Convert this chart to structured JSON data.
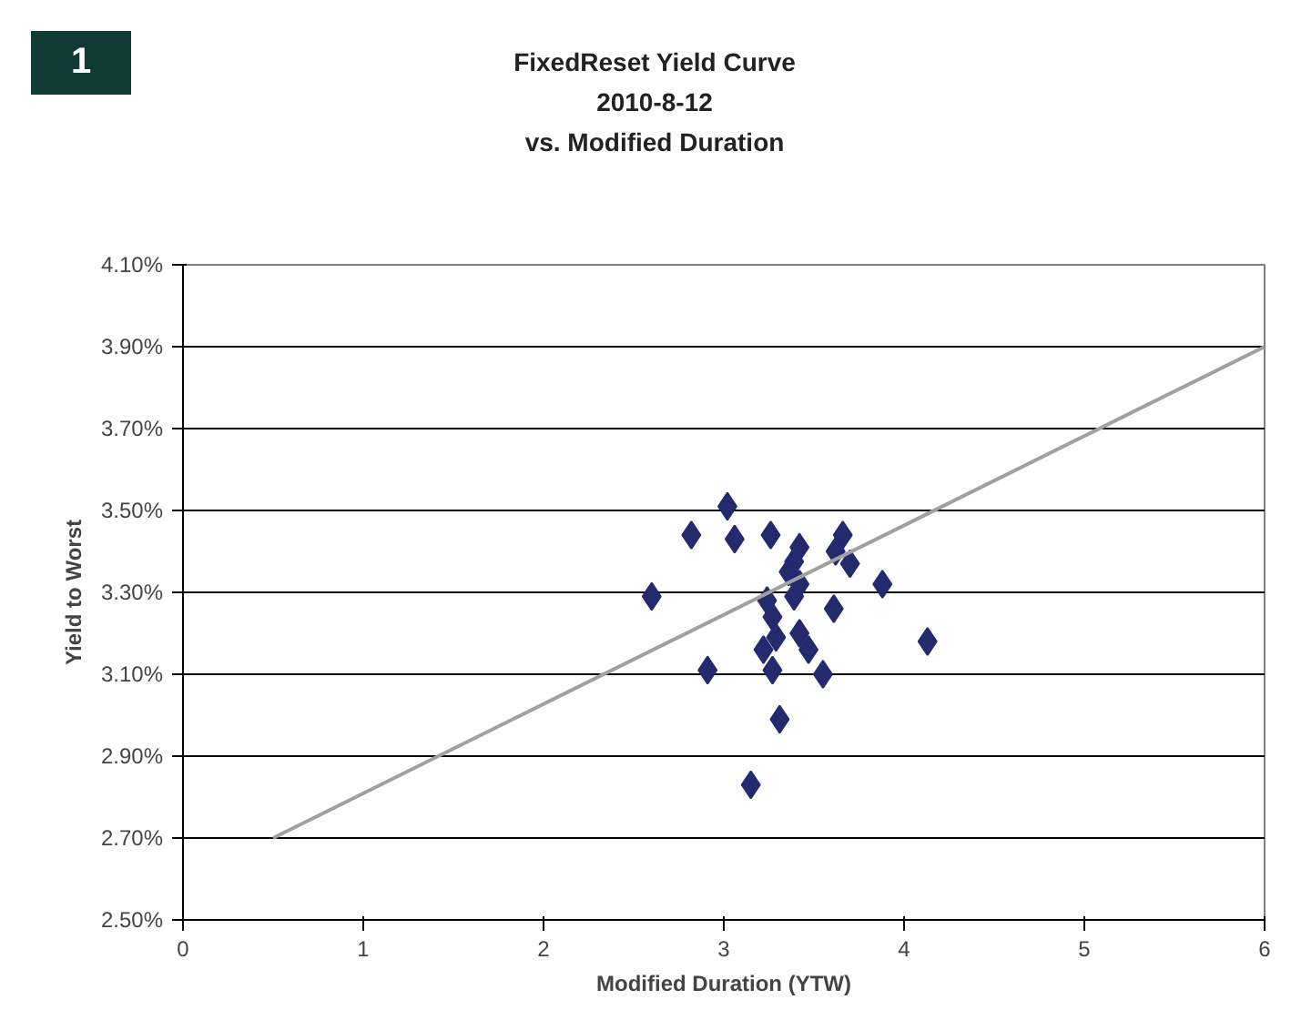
{
  "chart_data": {
    "type": "scatter",
    "title": "FixedReset Yield Curve\n2010-8-12\nvs. Modified Duration",
    "xlabel": "Modified Duration (YTW)",
    "ylabel": "Yield to Worst",
    "annotations": [
      "1"
    ],
    "x": [
      2.82,
      3.02,
      3.06,
      3.26,
      3.66,
      3.62,
      3.7,
      3.42,
      3.39,
      3.36,
      3.42,
      3.39,
      3.88,
      2.6,
      3.24,
      3.27,
      3.61,
      4.13,
      3.42,
      3.47,
      3.22,
      3.29,
      3.27,
      2.91,
      3.55,
      3.31,
      3.15
    ],
    "series": [
      {
        "color": "#232a6e",
        "marker": "diamond",
        "values": [
          3.44,
          3.51,
          3.43,
          3.44,
          3.44,
          3.4,
          3.37,
          3.41,
          3.375,
          3.35,
          3.32,
          3.29,
          3.32,
          3.29,
          3.28,
          3.24,
          3.26,
          3.18,
          3.2,
          3.16,
          3.16,
          3.19,
          3.11,
          3.11,
          3.1,
          2.99,
          2.83
        ]
      },
      {
        "type": "line",
        "color": "#a0a0a0",
        "marker": "none",
        "x": [
          0.5,
          6
        ],
        "values": [
          2.7,
          3.9
        ]
      }
    ],
    "xlim": [
      0,
      6
    ],
    "xticks": [
      0,
      1,
      2,
      3,
      4,
      5,
      6
    ],
    "ylim": [
      2.5,
      4.1
    ],
    "yticks": [
      {
        "value": 2.5,
        "label": "2.50%"
      },
      {
        "value": 2.7,
        "label": "2.70%"
      },
      {
        "value": 2.9,
        "label": "2.90%"
      },
      {
        "value": 3.1,
        "label": "3.10%"
      },
      {
        "value": 3.3,
        "label": "3.30%"
      },
      {
        "value": 3.5,
        "label": "3.50%"
      },
      {
        "value": 3.7,
        "label": "3.70%"
      },
      {
        "value": 3.9,
        "label": "3.90%"
      },
      {
        "value": 4.1,
        "label": "4.10%"
      }
    ],
    "grid": "y"
  }
}
